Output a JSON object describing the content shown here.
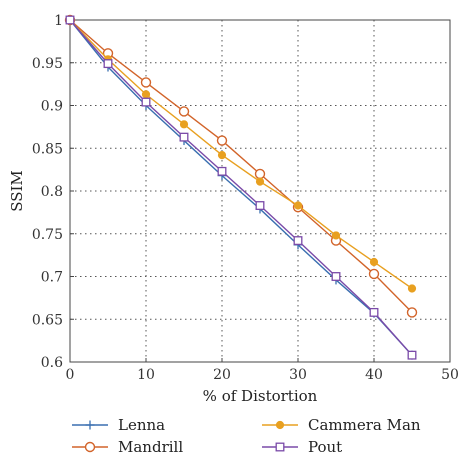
{
  "chart_data": {
    "type": "line",
    "xlabel": "% of Distortion",
    "ylabel": "SSIM",
    "xlim": [
      0,
      50
    ],
    "ylim": [
      0.6,
      1.0
    ],
    "xticks": [
      0,
      10,
      20,
      30,
      40,
      50
    ],
    "yticks": [
      0.6,
      0.65,
      0.7,
      0.75,
      0.8,
      0.85,
      0.9,
      0.95,
      1.0
    ],
    "xtick_labels": [
      "0",
      "10",
      "20",
      "30",
      "40",
      "50"
    ],
    "ytick_labels": [
      "0.6",
      "0.65",
      "0.7",
      "0.75",
      "0.8",
      "0.85",
      "0.9",
      "0.95",
      "1"
    ],
    "grid": true,
    "legend_position": "bottom",
    "x": [
      0,
      5,
      10,
      15,
      20,
      25,
      30,
      35,
      40,
      45
    ],
    "series": [
      {
        "name": "Lenna",
        "values": [
          1.0,
          0.945,
          0.9,
          0.859,
          0.818,
          0.779,
          0.737,
          0.696,
          0.657,
          0.608
        ],
        "color": "#3a6fb0",
        "marker": "plus"
      },
      {
        "name": "Mandrill",
        "values": [
          1.0,
          0.961,
          0.927,
          0.893,
          0.859,
          0.82,
          0.781,
          0.742,
          0.703,
          0.658
        ],
        "color": "#d2642a",
        "marker": "circle-open"
      },
      {
        "name": "Cammera Man",
        "values": [
          1.0,
          0.954,
          0.913,
          0.878,
          0.842,
          0.811,
          0.783,
          0.748,
          0.717,
          0.686
        ],
        "color": "#e8a020",
        "marker": "circle-filled"
      },
      {
        "name": "Pout",
        "values": [
          1.0,
          0.949,
          0.904,
          0.863,
          0.823,
          0.783,
          0.742,
          0.7,
          0.658,
          0.608
        ],
        "color": "#7a4aa8",
        "marker": "square-open"
      }
    ]
  }
}
